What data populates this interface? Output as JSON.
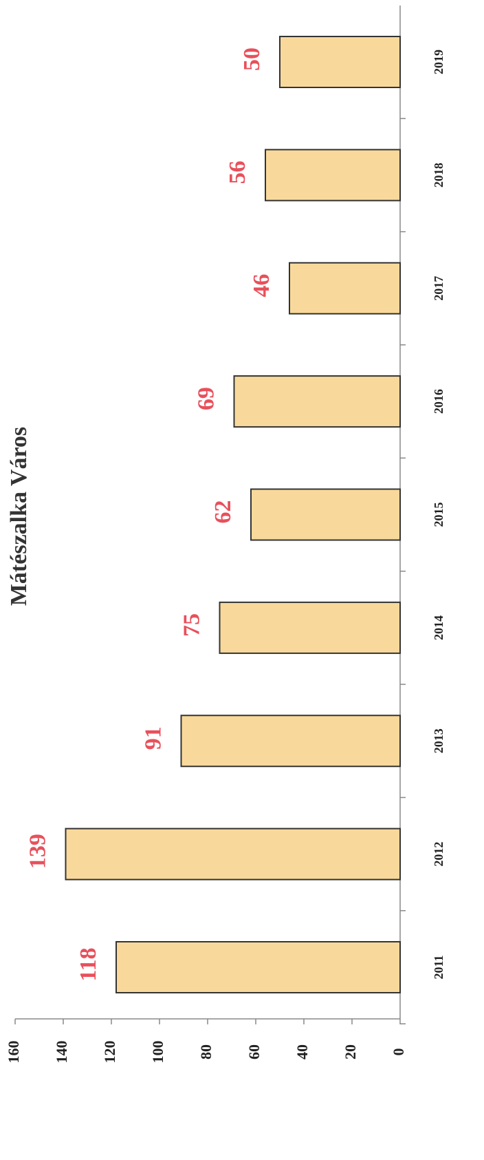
{
  "chart_data": {
    "type": "bar",
    "title": "Mátészalka Város",
    "categories": [
      "2011",
      "2012",
      "2013",
      "2014",
      "2015",
      "2016",
      "2017",
      "2018",
      "2019"
    ],
    "values": [
      118,
      139,
      91,
      75,
      62,
      69,
      46,
      56,
      50
    ],
    "color": "#f9d99b",
    "label_color": "#e8505b",
    "ylim": [
      0,
      160
    ],
    "yticks": [
      0,
      20,
      40,
      60,
      80,
      100,
      120,
      140,
      160
    ]
  }
}
